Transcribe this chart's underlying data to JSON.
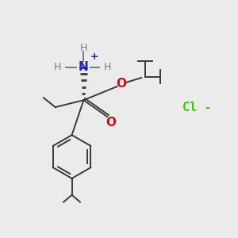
{
  "background_color": "#ebebeb",
  "bond_color": "#3a3a3a",
  "nitrogen_color": "#2020cc",
  "oxygen_color": "#cc1010",
  "chlorine_color": "#33cc00",
  "H_color": "#7a7a7a",
  "figsize": [
    3.0,
    3.0
  ],
  "dpi": 100,
  "xlim": [
    0,
    10
  ],
  "ylim": [
    0,
    10
  ]
}
